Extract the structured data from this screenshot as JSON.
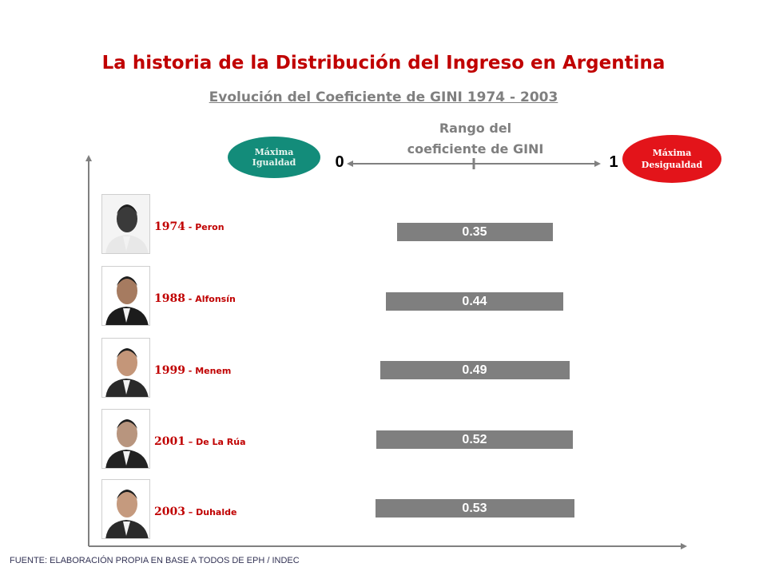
{
  "header": {
    "title": "La historia de la Distribución del Ingreso en Argentina",
    "subtitle": "Evolución del Coeficiente de GINI 1974 - 2003"
  },
  "scale": {
    "label_line1": "Rango del",
    "label_line2": "coeficiente de GINI",
    "min_label": "0",
    "max_label": "1",
    "min_badge": "Máxima Igualdad",
    "max_badge": "Máxima Desigualdad",
    "min_badge_color": "#138c7a",
    "max_badge_color": "#e3141a"
  },
  "chart_data": {
    "type": "bar",
    "orientation": "horizontal",
    "categories": [
      {
        "year": "1974",
        "sep": " - ",
        "name": "Peron"
      },
      {
        "year": "1988",
        "sep": " - ",
        "name": "Alfonsín"
      },
      {
        "year": "1999",
        "sep": " - ",
        "name": "Menem"
      },
      {
        "year": "2001",
        "sep": " – ",
        "name": "De La Rúa"
      },
      {
        "year": "2003",
        "sep": " – ",
        "name": "Duhalde"
      }
    ],
    "values": [
      0.35,
      0.44,
      0.49,
      0.52,
      0.53
    ],
    "data_labels": [
      "0.35",
      "0.44",
      "0.49",
      "0.52",
      "0.53"
    ],
    "xlim": [
      0,
      1
    ],
    "bar_color": "#7f7f7f",
    "label_color": "#c00000"
  },
  "footer": {
    "source": "FUENTE: ELABORACIÓN PROPIA EN BASE A TODOS DE EPH / INDEC"
  }
}
